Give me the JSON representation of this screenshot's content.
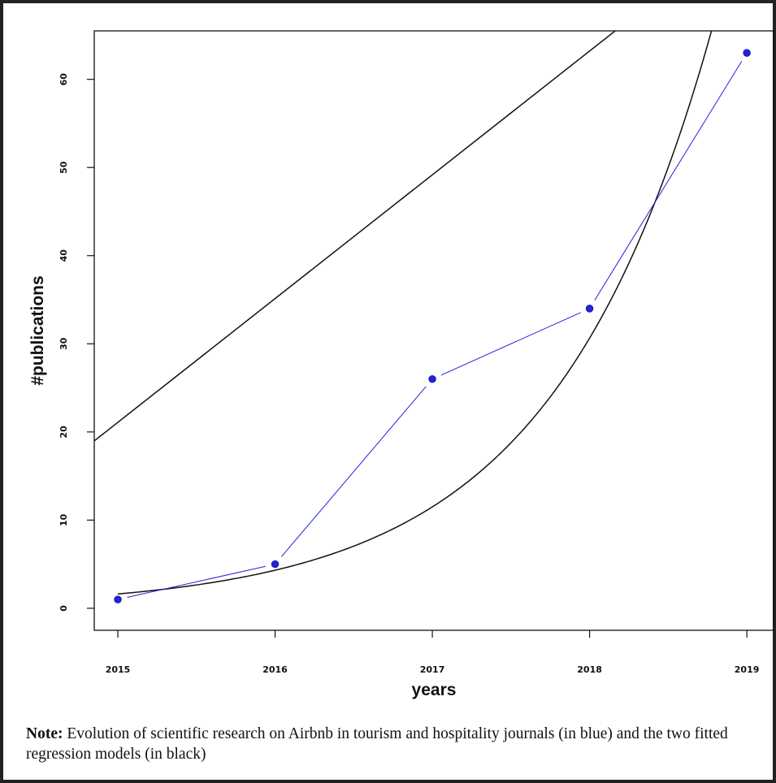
{
  "chart_data": {
    "type": "line",
    "title": "",
    "xlabel": "years",
    "ylabel": "#publications",
    "x": [
      2015,
      2016,
      2017,
      2018,
      2019
    ],
    "xlim": [
      2014.85,
      2019.17
    ],
    "ylim": [
      -2.5,
      65.5
    ],
    "x_ticks": [
      2015,
      2016,
      2017,
      2018,
      2019
    ],
    "y_ticks": [
      0,
      10,
      20,
      30,
      40,
      50,
      60
    ],
    "grid": false,
    "series": [
      {
        "values": [
          1,
          5,
          26,
          34,
          63
        ],
        "color": "#2222dd",
        "markers": true
      },
      {
        "kind": "linear-fit",
        "intercept": -28268.5,
        "slope": 14.0395,
        "color": "#111111"
      },
      {
        "kind": "exponential-fit",
        "a": 1.62,
        "b": 0.98,
        "x0": 2015,
        "color": "#111111"
      }
    ]
  },
  "note": {
    "label": "Note:",
    "text": " Evolution of scientific research on Airbnb in tourism and hospitality journals (in blue) and the two fitted regression models (in black)"
  },
  "colors": {
    "frame": "#222222",
    "data": "#2222dd",
    "fit": "#111111"
  }
}
